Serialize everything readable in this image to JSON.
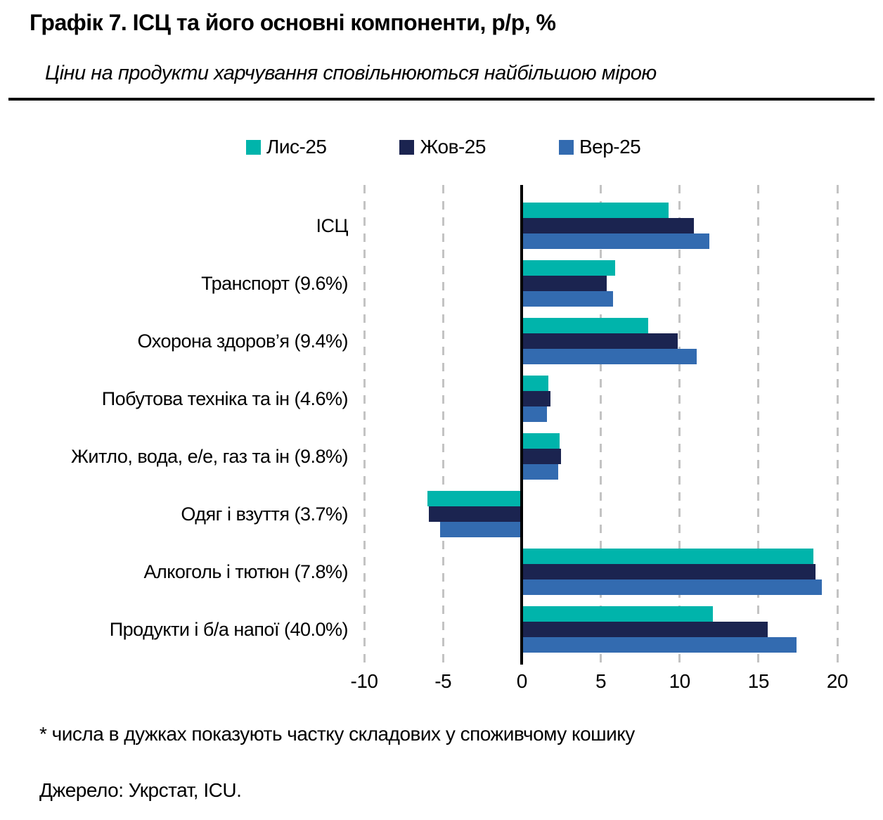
{
  "header": {
    "title": "Графік 7. ІСЦ та його основні компоненти, р/р, %",
    "subtitle": "Ціни на продукти харчування сповільнюються найбільшою мірою"
  },
  "chart_data": {
    "type": "bar",
    "orientation": "horizontal",
    "title": "Графік 7. ІСЦ та його основні компоненти, р/р, %",
    "categories": [
      "ІСЦ",
      "Транспорт (9.6%)",
      "Охорона здоров’я (9.4%)",
      "Побутова техніка та ін (4.6%)",
      "Житло, вода, е/е, газ та ін (9.8%)",
      "Одяг і взуття (3.7%)",
      "Алкоголь і тютюн (7.8%)",
      "Продукти і б/а напої (40.0%)"
    ],
    "series": [
      {
        "name": "Лис-25",
        "color": "#00B4AB",
        "values": [
          9.3,
          5.9,
          8.0,
          1.7,
          2.4,
          -6.0,
          18.5,
          12.1
        ]
      },
      {
        "name": "Жов-25",
        "color": "#1B2450",
        "values": [
          10.9,
          5.4,
          9.9,
          1.8,
          2.5,
          -5.9,
          18.6,
          15.6
        ]
      },
      {
        "name": "Вер-25",
        "color": "#336BB0",
        "values": [
          11.9,
          5.8,
          11.1,
          1.6,
          2.3,
          -5.2,
          19.0,
          17.4
        ]
      }
    ],
    "xlim": [
      -10,
      20
    ],
    "x_ticks": [
      -10,
      -5,
      0,
      5,
      10,
      15,
      20
    ],
    "grid": "dashed-vertical",
    "legend_position": "top",
    "axis_line_color": "#000000",
    "gridline_color": "#c3c3c3"
  },
  "footnote": "* числа в дужках показують частку складових у споживчому кошику",
  "source": "Джерело: Укрстат, ICU."
}
